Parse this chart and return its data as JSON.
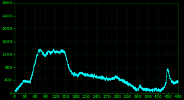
{
  "background_color": "#000000",
  "grid_color": "#006600",
  "line_color": "#00FFFF",
  "x_min": 0,
  "x_max": 480,
  "y_min": 0,
  "y_max": 2800,
  "x_ticks": [
    0,
    30,
    60,
    90,
    120,
    150,
    180,
    210,
    240,
    270,
    300,
    330,
    360,
    390,
    420,
    450,
    480
  ],
  "y_ticks": [
    0,
    400,
    800,
    1200,
    1600,
    2000,
    2400,
    2800
  ],
  "tick_color": "#00FF00",
  "tick_fontsize": 4.5,
  "line_width": 0.6,
  "figsize": [
    2.64,
    1.44
  ],
  "dpi": 100,
  "traffic_profile": [
    [
      0,
      50
    ],
    [
      5,
      100
    ],
    [
      10,
      150
    ],
    [
      15,
      200
    ],
    [
      20,
      280
    ],
    [
      25,
      350
    ],
    [
      30,
      380
    ],
    [
      35,
      350
    ],
    [
      40,
      340
    ],
    [
      45,
      360
    ],
    [
      50,
      500
    ],
    [
      55,
      750
    ],
    [
      60,
      950
    ],
    [
      65,
      1150
    ],
    [
      70,
      1300
    ],
    [
      75,
      1350
    ],
    [
      80,
      1280
    ],
    [
      85,
      1200
    ],
    [
      90,
      1150
    ],
    [
      95,
      1230
    ],
    [
      100,
      1300
    ],
    [
      105,
      1250
    ],
    [
      110,
      1280
    ],
    [
      115,
      1320
    ],
    [
      120,
      1270
    ],
    [
      125,
      1300
    ],
    [
      130,
      1250
    ],
    [
      135,
      1280
    ],
    [
      140,
      1320
    ],
    [
      145,
      1280
    ],
    [
      150,
      1150
    ],
    [
      155,
      900
    ],
    [
      160,
      750
    ],
    [
      165,
      650
    ],
    [
      170,
      600
    ],
    [
      175,
      580
    ],
    [
      180,
      560
    ],
    [
      185,
      550
    ],
    [
      190,
      600
    ],
    [
      195,
      620
    ],
    [
      200,
      580
    ],
    [
      210,
      560
    ],
    [
      220,
      540
    ],
    [
      230,
      520
    ],
    [
      240,
      500
    ],
    [
      250,
      480
    ],
    [
      260,
      460
    ],
    [
      270,
      440
    ],
    [
      280,
      440
    ],
    [
      290,
      450
    ],
    [
      295,
      500
    ],
    [
      300,
      480
    ],
    [
      305,
      450
    ],
    [
      310,
      400
    ],
    [
      315,
      380
    ],
    [
      320,
      360
    ],
    [
      325,
      330
    ],
    [
      330,
      300
    ],
    [
      335,
      270
    ],
    [
      340,
      240
    ],
    [
      345,
      200
    ],
    [
      350,
      160
    ],
    [
      355,
      120
    ],
    [
      358,
      80
    ],
    [
      360,
      90
    ],
    [
      362,
      100
    ],
    [
      365,
      180
    ],
    [
      368,
      220
    ],
    [
      370,
      180
    ],
    [
      373,
      130
    ],
    [
      376,
      110
    ],
    [
      380,
      100
    ],
    [
      385,
      95
    ],
    [
      390,
      90
    ],
    [
      395,
      85
    ],
    [
      400,
      80
    ],
    [
      405,
      80
    ],
    [
      408,
      75
    ],
    [
      410,
      80
    ],
    [
      413,
      120
    ],
    [
      415,
      100
    ],
    [
      418,
      80
    ],
    [
      420,
      75
    ],
    [
      425,
      80
    ],
    [
      430,
      100
    ],
    [
      435,
      140
    ],
    [
      440,
      200
    ],
    [
      443,
      300
    ],
    [
      445,
      500
    ],
    [
      447,
      700
    ],
    [
      449,
      750
    ],
    [
      451,
      650
    ],
    [
      453,
      550
    ],
    [
      455,
      480
    ],
    [
      458,
      400
    ],
    [
      461,
      350
    ],
    [
      464,
      320
    ],
    [
      467,
      310
    ],
    [
      470,
      320
    ],
    [
      473,
      330
    ],
    [
      476,
      340
    ],
    [
      479,
      350
    ],
    [
      480,
      340
    ]
  ]
}
